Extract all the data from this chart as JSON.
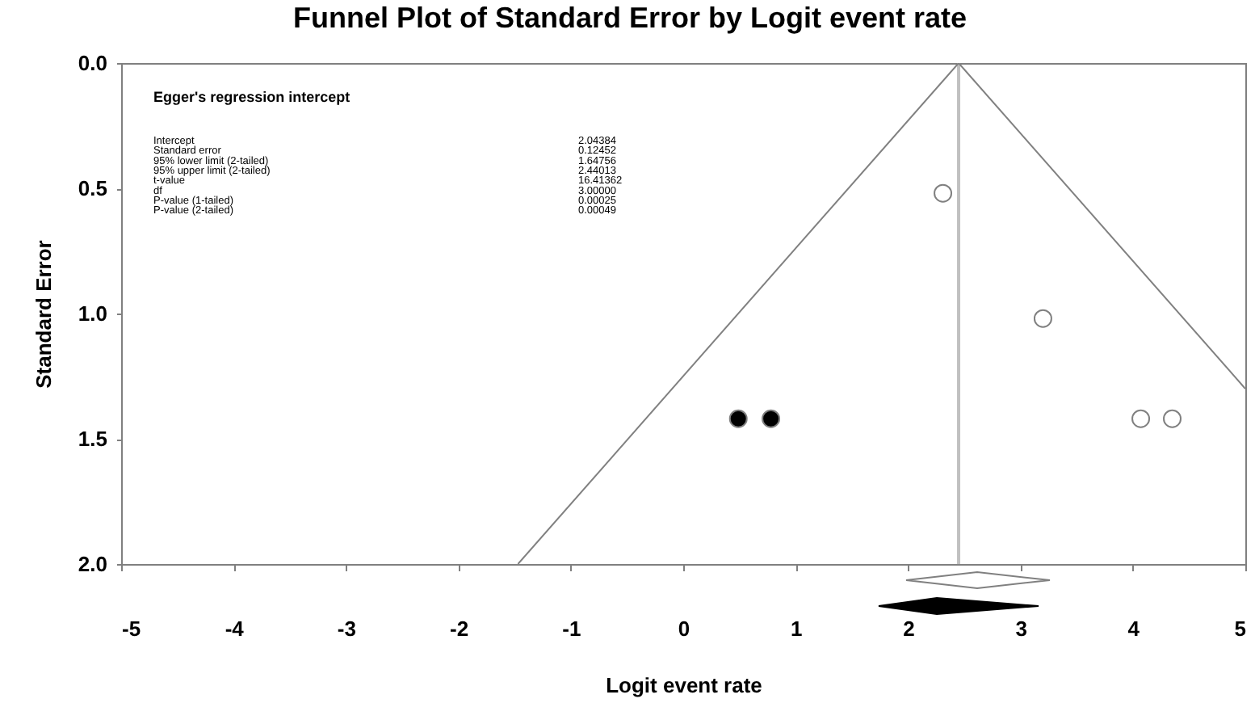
{
  "chart_data": {
    "type": "scatter",
    "title": "Funnel Plot of Standard Error by Logit event rate",
    "xlabel": "Logit event rate",
    "ylabel": "Standard Error",
    "annotations": [
      "Egger's regression intercept",
      "Intercept",
      "2.04384",
      "Standard error",
      "0.12452",
      "95% lower limit (2-tailed)",
      "1.64756",
      "95% upper limit (2-tailed)",
      "2.44013",
      "t-value",
      "16.41362",
      "df",
      "3.00000",
      "P-value (1-tailed)",
      "0.00025",
      "P-value (2-tailed)",
      "0.00049"
    ],
    "xlim": [
      -5,
      5
    ],
    "xticks": [
      -5,
      -4,
      -3,
      -2,
      -1,
      0,
      1,
      2,
      3,
      4,
      5
    ],
    "ylim": [
      2,
      0
    ],
    "yticks": [
      {
        "value": 0,
        "label": "0.0"
      },
      {
        "value": 0.5,
        "label": "0.5"
      },
      {
        "value": 1,
        "label": "1.0"
      },
      {
        "value": 1.5,
        "label": "1.5"
      },
      {
        "value": 2,
        "label": "2.0"
      }
    ],
    "grid": false,
    "ref_lines": [
      {
        "axis": "x",
        "value": 2.45,
        "color": "#c0c0c0"
      }
    ],
    "series": [
      {
        "marker": "circle",
        "color": "#ffffff",
        "x": [
          2.31,
          3.2,
          4.07,
          4.35
        ],
        "values": [
          0.52,
          1.02,
          1.42,
          1.42
        ]
      },
      {
        "marker": "circle",
        "color": "#000000",
        "x": [
          0.49,
          0.78
        ],
        "values": [
          1.42,
          1.42
        ]
      },
      {
        "type": "line",
        "color": "#808080",
        "x": [
          2.45,
          -1.47
        ],
        "values": [
          0,
          2
        ]
      },
      {
        "type": "line",
        "color": "#808080",
        "x": [
          2.45,
          5
        ],
        "values": [
          0,
          1.3
        ]
      }
    ]
  }
}
